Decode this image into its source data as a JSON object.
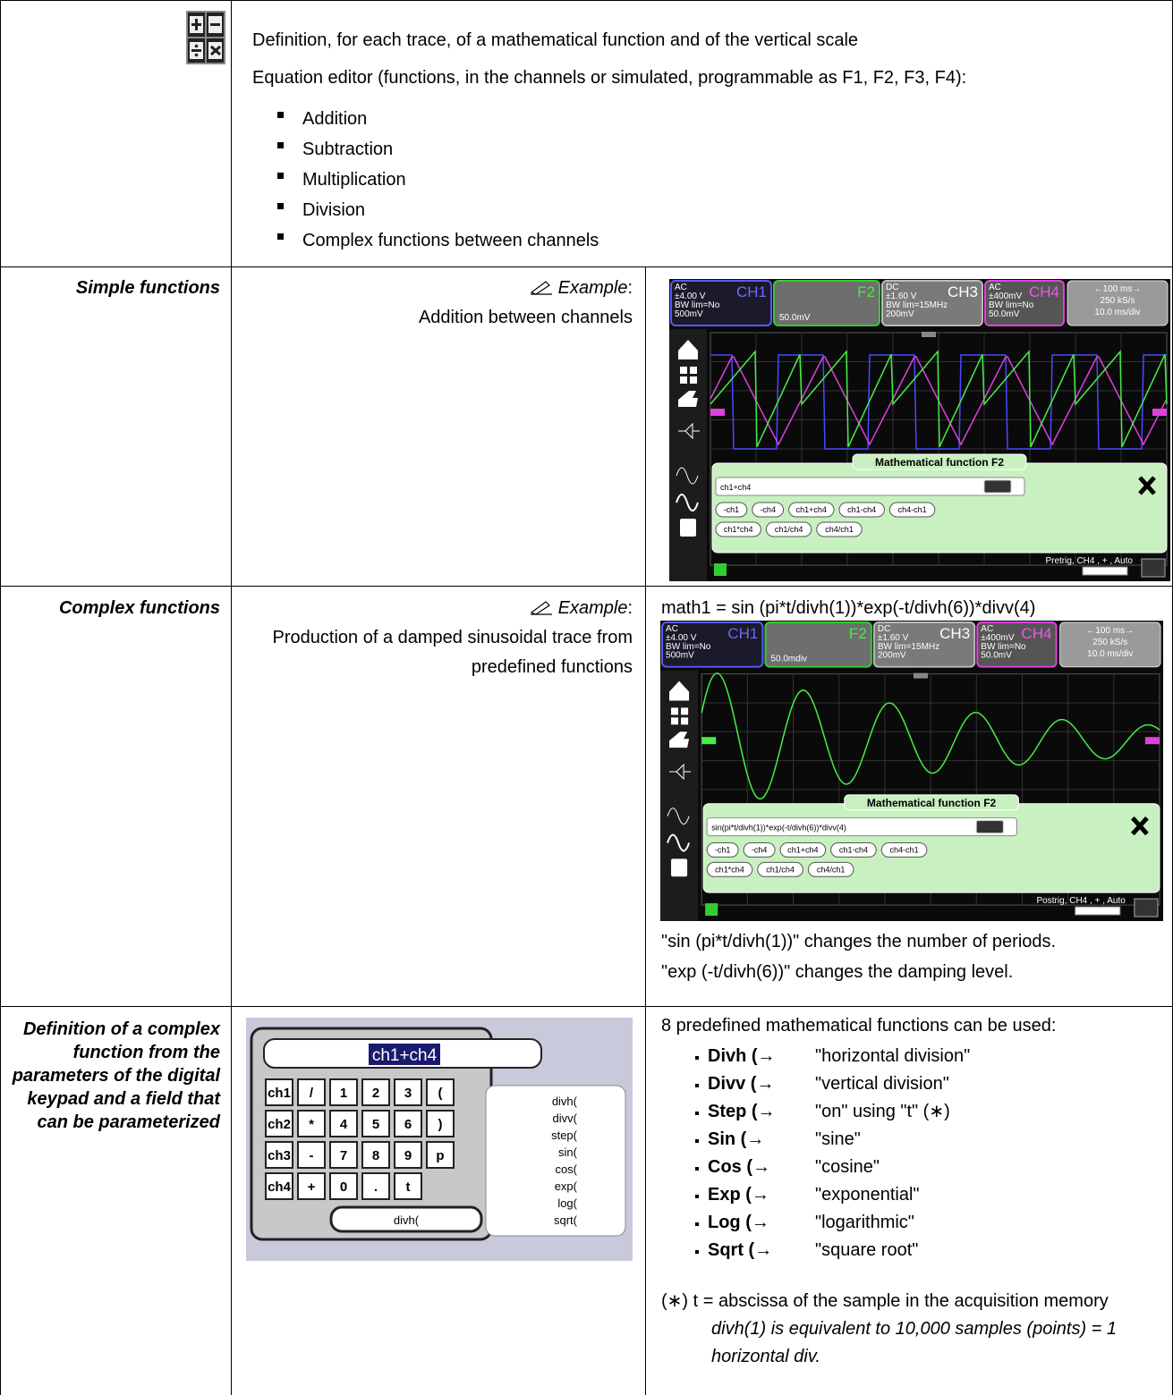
{
  "intro": {
    "title": "Definition, for each trace, of a mathematical function and of the vertical scale",
    "subtitle": "Equation editor (functions, in the channels or simulated, programmable as F1, F2, F3, F4):",
    "items": [
      "Addition",
      "Subtraction",
      "Multiplication",
      "Division",
      "Complex functions between channels"
    ]
  },
  "simple": {
    "label": "Simple functions",
    "example_label": "Example",
    "example_colon": ":",
    "example_text": "Addition between channels",
    "screen": {
      "channels": [
        {
          "coupling": "AC",
          "range": "±4.00 V",
          "name": "CH1",
          "bw": "BW lim=No",
          "scale": "500mV"
        },
        {
          "name": "F2",
          "scale": "50.0mV"
        },
        {
          "coupling": "DC",
          "range": "±1.60 V",
          "name": "CH3",
          "bw": "BW lim=15MHz",
          "scale": "200mV"
        },
        {
          "coupling": "AC",
          "range": "±400mV",
          "name": "CH4",
          "bw": "BW lim=No",
          "scale": "50.0mV"
        }
      ],
      "timebase": [
        "←100 ms→",
        "250 kS/s",
        "10.0 ms/div"
      ],
      "dialog_title": "Mathematical function F2",
      "expression": "ch1+ch4",
      "buttons": [
        [
          "-ch1",
          "-ch4",
          "ch1+ch4",
          "ch1-ch4",
          "ch4-ch1"
        ],
        [
          "ch1*ch4",
          "ch1/ch4",
          "ch4/ch1"
        ]
      ],
      "status": "Pretrig, CH4 , + , Auto"
    }
  },
  "complex": {
    "label": "Complex functions",
    "example_label": "Example",
    "example_colon": ":",
    "example_text": "Production of a damped sinusoidal trace from predefined functions",
    "formula": "math1 = sin (pi*t/divh(1))*exp(-t/divh(6))*divv(4)",
    "screen": {
      "channels": [
        {
          "coupling": "AC",
          "range": "±4.00 V",
          "name": "CH1",
          "bw": "BW lim=No",
          "scale": "500mV"
        },
        {
          "name": "F2",
          "scale": "50.0mdiv"
        },
        {
          "coupling": "DC",
          "range": "±1.60 V",
          "name": "CH3",
          "bw": "BW lim=15MHz",
          "scale": "200mV"
        },
        {
          "coupling": "AC",
          "range": "±400mV",
          "name": "CH4",
          "bw": "BW lim=No",
          "scale": "50.0mV"
        }
      ],
      "timebase": [
        "←100 ms→",
        "250 kS/s",
        "10.0 ms/div"
      ],
      "dialog_title": "Mathematical function F2",
      "expression": "sin(pi*t/divh(1))*exp(-t/divh(6))*divv(4)",
      "buttons": [
        [
          "-ch1",
          "-ch4",
          "ch1+ch4",
          "ch1-ch4",
          "ch4-ch1"
        ],
        [
          "ch1*ch4",
          "ch1/ch4",
          "ch4/ch1"
        ]
      ],
      "status": "Postrig, CH4 , + , Auto"
    },
    "notes": [
      "\"sin (pi*t/divh(1))\" changes the number of periods.",
      "\"exp (-t/divh(6))\" changes the damping level."
    ]
  },
  "definition": {
    "label": "Definition of a complex function from the parameters of the digital keypad and a field that can be parameterized",
    "keypad": {
      "field": "ch1+ch4",
      "keys": [
        [
          "ch1",
          "/",
          "1",
          "2",
          "3",
          "("
        ],
        [
          "ch2",
          "*",
          "4",
          "5",
          "6",
          ")"
        ],
        [
          "ch3",
          "-",
          "7",
          "8",
          "9",
          "p"
        ],
        [
          "ch4",
          "+",
          "0",
          ".",
          "t"
        ]
      ],
      "bottom": "divh(",
      "menu": [
        "divh(",
        "divv(",
        "step(",
        "sin(",
        "cos(",
        "exp(",
        "log(",
        "sqrt("
      ]
    },
    "intro": "8 predefined mathematical functions can be used:",
    "functions": [
      {
        "name": "Divh (→",
        "desc": "\"horizontal division\""
      },
      {
        "name": "Divv (→",
        "desc": "\"vertical division\""
      },
      {
        "name": "Step (→",
        "desc": "\"on\" using \"t\" (∗)"
      },
      {
        "name": "Sin (→",
        "desc": "\"sine\""
      },
      {
        "name": "Cos (→",
        "desc": "\"cosine\""
      },
      {
        "name": "Exp (→",
        "desc": "\"exponential\""
      },
      {
        "name": "Log (→",
        "desc": "\"logarithmic\""
      },
      {
        "name": "Sqrt (→",
        "desc": "\"square root\""
      }
    ],
    "note": "(∗) t = abscissa of the sample in the acquisition memory",
    "note_italic": "divh(1) is equivalent to 10,000 samples (points) = 1 horizontal div."
  }
}
